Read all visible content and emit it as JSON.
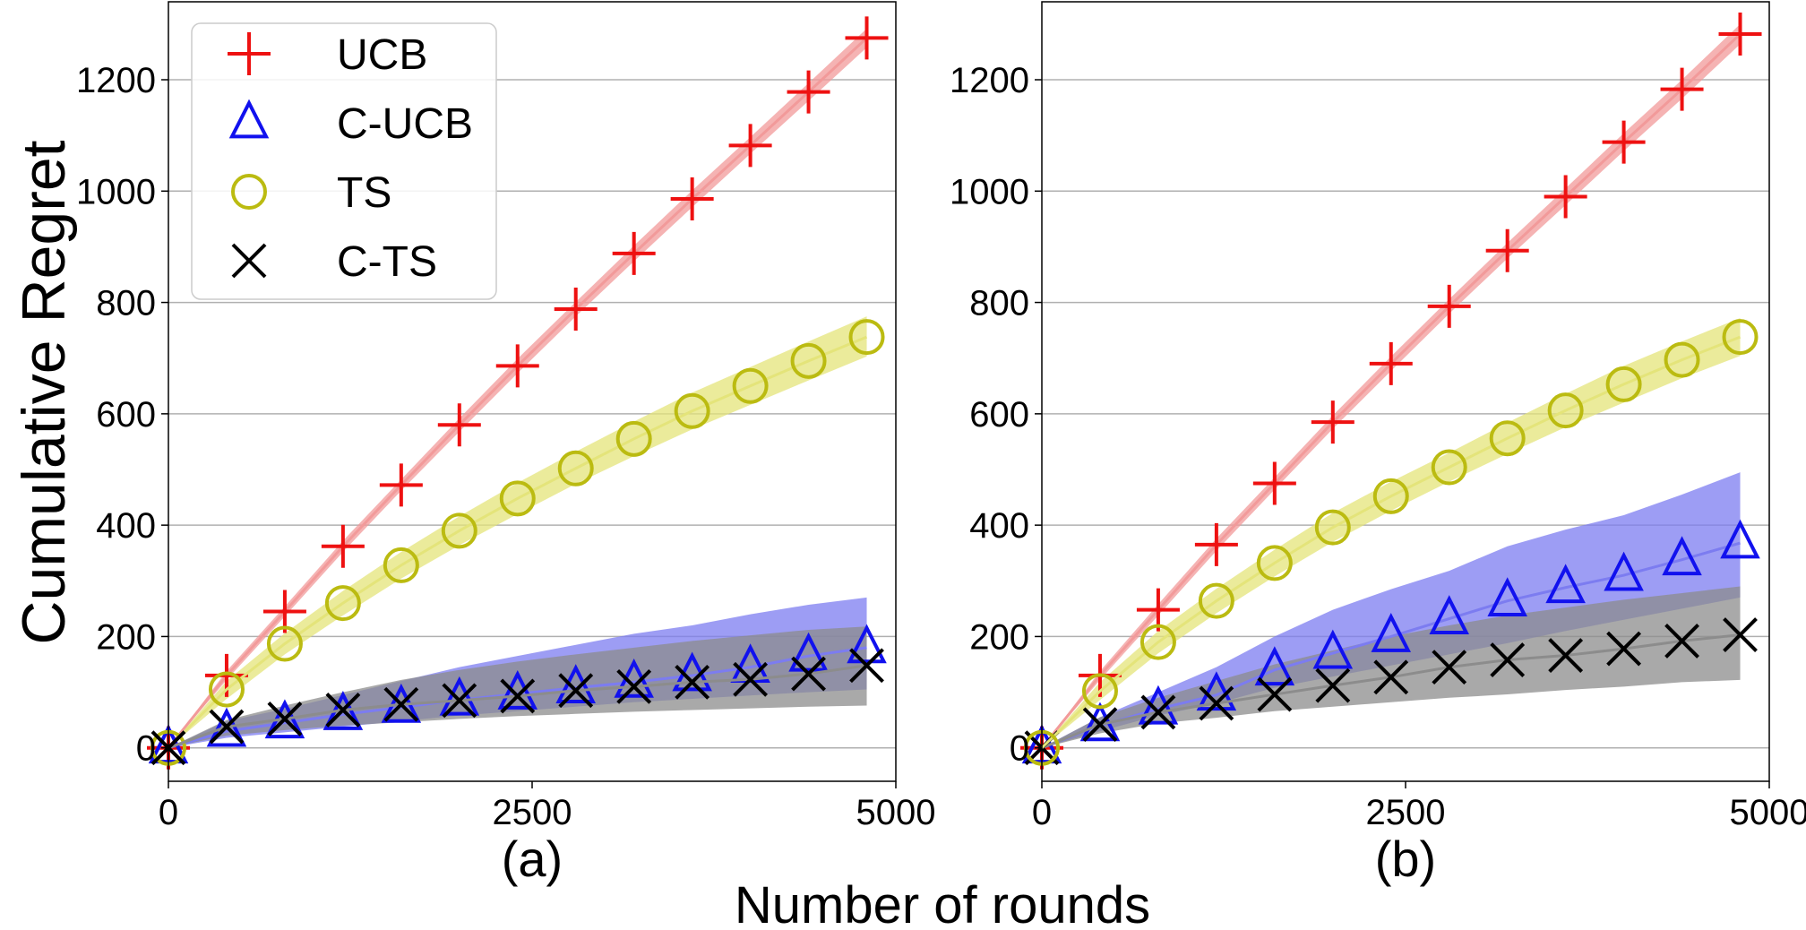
{
  "figure": {
    "ylabel": "Cumulative Regret",
    "xlabel": "Number of rounds",
    "colors": {
      "UCB": "#ee1111",
      "C-UCB": "#1111ee",
      "TS": "#bbbb11",
      "C-TS": "#000000"
    }
  },
  "chart_data": [
    {
      "type": "line",
      "panel_label": "(a)",
      "xlim": [
        0,
        5000
      ],
      "ylim": [
        -60,
        1340
      ],
      "xticks": [
        0,
        2500,
        5000
      ],
      "xtick_labels": [
        "0",
        "2500",
        "5000"
      ],
      "yticks": [
        0,
        200,
        400,
        600,
        800,
        1000,
        1200
      ],
      "ytick_labels": [
        "0",
        "200",
        "400",
        "600",
        "800",
        "1000",
        "1200"
      ],
      "grid": "horizontal",
      "legend": {
        "placement": "top-left",
        "entries": [
          "UCB",
          "C-UCB",
          "TS",
          "C-TS"
        ]
      },
      "x": [
        0,
        400,
        800,
        1200,
        1600,
        2000,
        2400,
        2800,
        3200,
        3600,
        4000,
        4400,
        4800
      ],
      "series": [
        {
          "name": "UCB",
          "marker": "plus",
          "color": "#ee1111",
          "band_color": "#f29a9a",
          "values": [
            0,
            130,
            245,
            362,
            472,
            580,
            686,
            788,
            888,
            986,
            1082,
            1178,
            1275
          ],
          "band_low": [
            0,
            122,
            236,
            352,
            462,
            568,
            673,
            775,
            874,
            971,
            1067,
            1162,
            1258
          ],
          "band_high": [
            0,
            138,
            254,
            372,
            482,
            592,
            699,
            801,
            902,
            1001,
            1097,
            1194,
            1292
          ]
        },
        {
          "name": "C-UCB",
          "marker": "triangle",
          "color": "#1111ee",
          "band_color": "#7c7cf0",
          "values": [
            0,
            30,
            45,
            60,
            73,
            86,
            97,
            108,
            118,
            130,
            145,
            165,
            180
          ],
          "band_low": [
            0,
            18,
            28,
            38,
            48,
            58,
            66,
            74,
            82,
            88,
            94,
            100,
            105
          ],
          "band_high": [
            0,
            48,
            70,
            95,
            120,
            145,
            165,
            185,
            205,
            220,
            240,
            257,
            270
          ]
        },
        {
          "name": "TS",
          "marker": "circle",
          "color": "#bbbb11",
          "band_color": "#e4e47a",
          "values": [
            0,
            105,
            187,
            260,
            328,
            390,
            448,
            502,
            555,
            605,
            650,
            695,
            738
          ],
          "band_low": [
            0,
            88,
            168,
            238,
            304,
            364,
            420,
            474,
            524,
            572,
            616,
            660,
            703
          ],
          "band_high": [
            0,
            120,
            206,
            282,
            352,
            416,
            476,
            532,
            586,
            638,
            684,
            730,
            775
          ]
        },
        {
          "name": "C-TS",
          "marker": "x",
          "color": "#000000",
          "band_color": "#8c8c8c",
          "values": [
            0,
            38,
            52,
            68,
            78,
            85,
            93,
            103,
            110,
            118,
            123,
            133,
            148
          ],
          "band_low": [
            0,
            22,
            32,
            40,
            46,
            52,
            57,
            61,
            65,
            68,
            71,
            74,
            76
          ],
          "band_high": [
            0,
            50,
            76,
            100,
            122,
            140,
            155,
            168,
            180,
            192,
            202,
            212,
            218
          ]
        }
      ]
    },
    {
      "type": "line",
      "panel_label": "(b)",
      "xlim": [
        0,
        5000
      ],
      "ylim": [
        -60,
        1340
      ],
      "xticks": [
        0,
        2500,
        5000
      ],
      "xtick_labels": [
        "0",
        "2500",
        "5000"
      ],
      "yticks": [
        0,
        200,
        400,
        600,
        800,
        1000,
        1200
      ],
      "ytick_labels": [
        "0",
        "200",
        "400",
        "600",
        "800",
        "1000",
        "1200"
      ],
      "grid": "horizontal",
      "legend": null,
      "x": [
        0,
        400,
        800,
        1200,
        1600,
        2000,
        2400,
        2800,
        3200,
        3600,
        4000,
        4400,
        4800
      ],
      "series": [
        {
          "name": "UCB",
          "marker": "plus",
          "color": "#ee1111",
          "band_color": "#f29a9a",
          "values": [
            0,
            130,
            248,
            365,
            475,
            585,
            690,
            793,
            893,
            990,
            1088,
            1183,
            1282
          ],
          "band_low": [
            0,
            122,
            238,
            354,
            464,
            573,
            677,
            780,
            879,
            975,
            1072,
            1166,
            1264
          ],
          "band_high": [
            0,
            138,
            258,
            376,
            486,
            597,
            703,
            806,
            907,
            1005,
            1104,
            1200,
            1300
          ]
        },
        {
          "name": "C-UCB",
          "marker": "triangle",
          "color": "#1111ee",
          "band_color": "#7c7cf0",
          "values": [
            0,
            40,
            70,
            95,
            140,
            170,
            200,
            232,
            264,
            288,
            310,
            338,
            368
          ],
          "band_low": [
            0,
            30,
            58,
            80,
            108,
            128,
            148,
            168,
            188,
            210,
            230,
            250,
            270
          ],
          "band_high": [
            0,
            55,
            100,
            145,
            200,
            248,
            285,
            318,
            362,
            392,
            418,
            455,
            495
          ]
        },
        {
          "name": "C-TS",
          "marker": "x",
          "color": "#000000",
          "band_color": "#8c8c8c",
          "values": [
            0,
            42,
            64,
            80,
            96,
            112,
            127,
            145,
            158,
            166,
            178,
            192,
            203
          ],
          "band_low": [
            0,
            26,
            44,
            54,
            66,
            74,
            82,
            90,
            96,
            104,
            110,
            118,
            122
          ],
          "band_high": [
            0,
            55,
            90,
            120,
            150,
            175,
            200,
            220,
            238,
            252,
            266,
            278,
            290
          ]
        },
        {
          "name": "TS",
          "marker": "circle",
          "color": "#bbbb11",
          "band_color": "#e4e47a",
          "values": [
            0,
            102,
            190,
            264,
            332,
            396,
            452,
            504,
            556,
            606,
            653,
            697,
            738
          ],
          "band_low": [
            0,
            86,
            170,
            242,
            308,
            370,
            426,
            478,
            528,
            576,
            620,
            664,
            704
          ],
          "band_high": [
            0,
            118,
            210,
            286,
            356,
            422,
            478,
            530,
            584,
            636,
            686,
            730,
            772
          ]
        }
      ]
    }
  ]
}
